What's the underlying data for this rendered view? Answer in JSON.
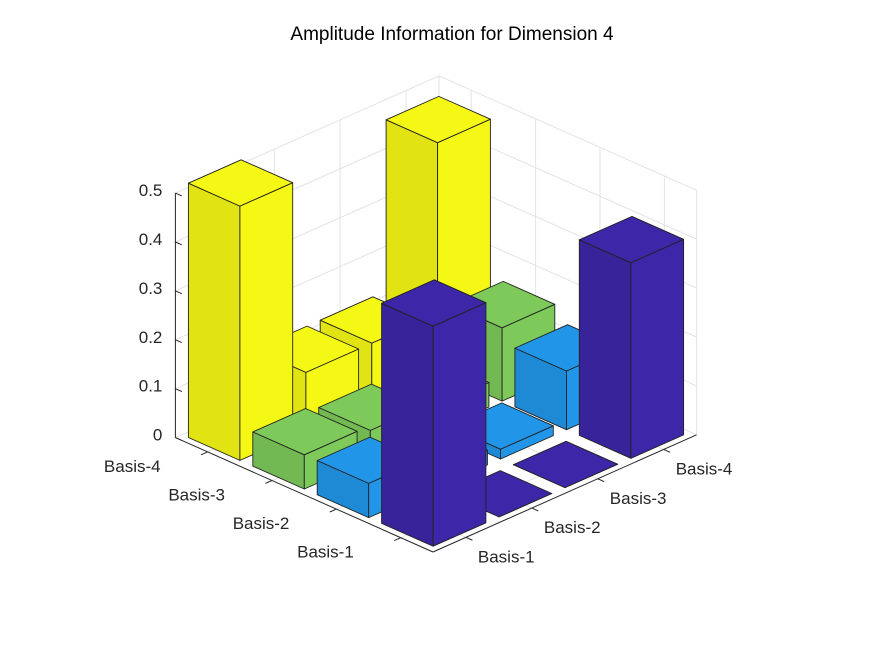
{
  "chart_data": {
    "type": "bar3",
    "title": "Amplitude Information for Dimension 4",
    "x_categories": [
      "Basis-1",
      "Basis-2",
      "Basis-3",
      "Basis-4"
    ],
    "y_categories": [
      "Basis-1",
      "Basis-2",
      "Basis-3",
      "Basis-4"
    ],
    "zlim": [
      0,
      0.5
    ],
    "z_ticks": [
      "0",
      "0.1",
      "0.2",
      "0.3",
      "0.4",
      "0.5"
    ],
    "grid": true,
    "colors": {
      "Basis-1": "#3e26a8",
      "Basis-2": "#2196e8",
      "Basis-3": "#7dc95a",
      "Basis-4": "#f5f714"
    },
    "bars": [
      {
        "x": "Basis-1",
        "y": "Basis-1",
        "value": 0.45
      },
      {
        "x": "Basis-1",
        "y": "Basis-2",
        "value": 0.0
      },
      {
        "x": "Basis-1",
        "y": "Basis-3",
        "value": 0.0
      },
      {
        "x": "Basis-1",
        "y": "Basis-4",
        "value": 0.4
      },
      {
        "x": "Basis-2",
        "y": "Basis-1",
        "value": 0.07
      },
      {
        "x": "Basis-2",
        "y": "Basis-2",
        "value": 0.03
      },
      {
        "x": "Basis-2",
        "y": "Basis-3",
        "value": 0.02
      },
      {
        "x": "Basis-2",
        "y": "Basis-4",
        "value": 0.12
      },
      {
        "x": "Basis-3",
        "y": "Basis-1",
        "value": 0.07
      },
      {
        "x": "Basis-3",
        "y": "Basis-2",
        "value": 0.06
      },
      {
        "x": "Basis-3",
        "y": "Basis-3",
        "value": 0.05
      },
      {
        "x": "Basis-3",
        "y": "Basis-4",
        "value": 0.15
      },
      {
        "x": "Basis-4",
        "y": "Basis-1",
        "value": 0.52
      },
      {
        "x": "Basis-4",
        "y": "Basis-2",
        "value": 0.12
      },
      {
        "x": "Basis-4",
        "y": "Basis-3",
        "value": 0.12
      },
      {
        "x": "Basis-4",
        "y": "Basis-4",
        "value": 0.47
      }
    ]
  }
}
